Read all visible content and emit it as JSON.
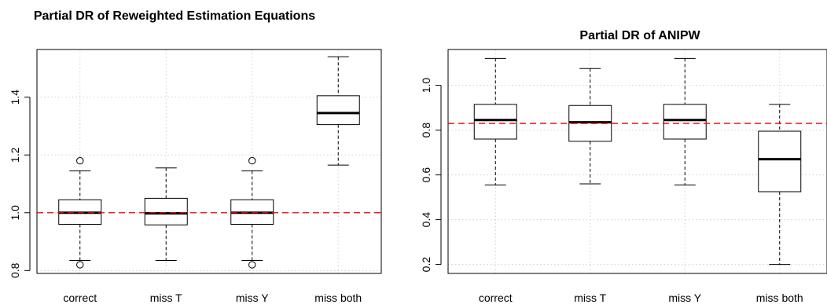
{
  "chart_data": [
    {
      "type": "box",
      "title": "Partial DR of Reweighted Estimation Equations",
      "xlabel": "",
      "ylabel": "",
      "categories": [
        "correct",
        "miss T",
        "miss Y",
        "miss both"
      ],
      "boxes": [
        {
          "whisker_low": 0.835,
          "q1": 0.96,
          "median": 1.0,
          "q3": 1.045,
          "whisker_high": 1.145,
          "outliers": [
            0.82,
            1.18
          ]
        },
        {
          "whisker_low": 0.835,
          "q1": 0.958,
          "median": 0.998,
          "q3": 1.05,
          "whisker_high": 1.155,
          "outliers": []
        },
        {
          "whisker_low": 0.835,
          "q1": 0.96,
          "median": 1.0,
          "q3": 1.045,
          "whisker_high": 1.145,
          "outliers": [
            0.82,
            1.18
          ]
        },
        {
          "whisker_low": 1.165,
          "q1": 1.305,
          "median": 1.345,
          "q3": 1.405,
          "whisker_high": 1.54,
          "outliers": []
        }
      ],
      "ylim": [
        0.79,
        1.565
      ],
      "yticks": [
        0.8,
        1.0,
        1.2,
        1.4
      ],
      "ytick_labels": [
        "0.8",
        "1.0",
        "1.2",
        "1.4"
      ],
      "reference_line": 1.0,
      "reference_line_color": "#e8000b",
      "grid": true
    },
    {
      "type": "box",
      "title": "Partial DR of ANIPW",
      "xlabel": "",
      "ylabel": "",
      "categories": [
        "correct",
        "miss T",
        "miss Y",
        "miss both"
      ],
      "boxes": [
        {
          "whisker_low": 0.555,
          "q1": 0.76,
          "median": 0.845,
          "q3": 0.915,
          "whisker_high": 1.12,
          "outliers": []
        },
        {
          "whisker_low": 0.56,
          "q1": 0.75,
          "median": 0.835,
          "q3": 0.91,
          "whisker_high": 1.075,
          "outliers": []
        },
        {
          "whisker_low": 0.555,
          "q1": 0.76,
          "median": 0.845,
          "q3": 0.915,
          "whisker_high": 1.12,
          "outliers": []
        },
        {
          "whisker_low": 0.2,
          "q1": 0.525,
          "median": 0.67,
          "q3": 0.795,
          "whisker_high": 0.915,
          "outliers": []
        }
      ],
      "ylim": [
        0.16,
        1.16
      ],
      "yticks": [
        0.2,
        0.4,
        0.6,
        0.8,
        1.0
      ],
      "ytick_labels": [
        "0.2",
        "0.4",
        "0.6",
        "0.8",
        "1.0"
      ],
      "reference_line": 0.83,
      "reference_line_color": "#e8000b",
      "grid": true
    }
  ]
}
